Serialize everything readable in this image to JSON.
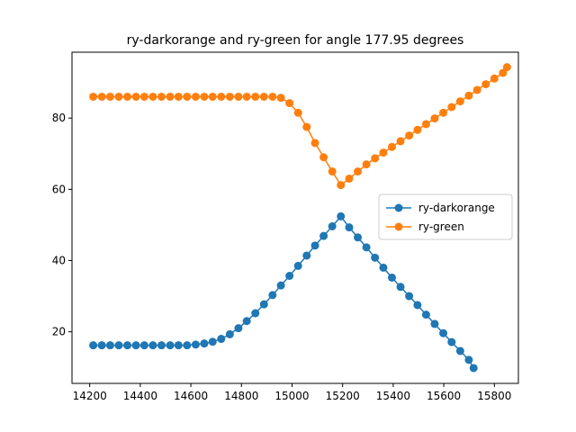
{
  "chart_data": {
    "type": "line",
    "title": "ry-darkorange and ry-green for angle 177.95 degrees",
    "xlabel": "",
    "ylabel": "",
    "xlim": [
      14130,
      15895
    ],
    "ylim": [
      5.5,
      98.5
    ],
    "xticks": [
      14200,
      14400,
      14600,
      14800,
      15000,
      15200,
      15400,
      15600,
      15800
    ],
    "yticks": [
      20,
      40,
      60,
      80
    ],
    "grid": false,
    "legend_position": "center-right",
    "series": [
      {
        "name": "ry-darkorange",
        "color": "#1f77b4",
        "marker": "circle",
        "x": [
          14214,
          14248,
          14281,
          14315,
          14349,
          14383,
          14416,
          14450,
          14484,
          14518,
          14551,
          14585,
          14619,
          14653,
          14686,
          14720,
          14754,
          14788,
          14821,
          14855,
          14889,
          14923,
          14956,
          14990,
          15024,
          15058,
          15091,
          15125,
          15159,
          15193,
          15226,
          15260,
          15294,
          15328,
          15361,
          15395,
          15429,
          15463,
          15496,
          15530,
          15564,
          15598,
          15631,
          15665,
          15699,
          15718
        ],
        "y": [
          16.2,
          16.2,
          16.2,
          16.2,
          16.2,
          16.2,
          16.2,
          16.2,
          16.2,
          16.2,
          16.2,
          16.2,
          16.4,
          16.7,
          17.2,
          18.0,
          19.3,
          21.0,
          23.0,
          25.2,
          27.7,
          30.3,
          33.0,
          35.7,
          38.5,
          41.4,
          44.2,
          46.9,
          49.6,
          52.4,
          49.3,
          46.5,
          43.7,
          40.8,
          38.0,
          35.2,
          32.6,
          30.0,
          27.5,
          24.8,
          22.2,
          19.6,
          17.1,
          14.6,
          12.1,
          9.8
        ]
      },
      {
        "name": "ry-green",
        "color": "#ff7f0e",
        "marker": "circle",
        "x": [
          14214,
          14248,
          14281,
          14315,
          14349,
          14383,
          14416,
          14450,
          14484,
          14518,
          14551,
          14585,
          14619,
          14653,
          14686,
          14720,
          14754,
          14788,
          14821,
          14855,
          14889,
          14923,
          14956,
          14990,
          15024,
          15058,
          15091,
          15125,
          15159,
          15193,
          15226,
          15260,
          15294,
          15328,
          15361,
          15395,
          15429,
          15463,
          15496,
          15530,
          15564,
          15598,
          15631,
          15665,
          15699,
          15732,
          15766,
          15800,
          15834,
          15850
        ],
        "y": [
          86.0,
          86.0,
          86.0,
          86.0,
          86.0,
          86.0,
          86.0,
          86.0,
          86.0,
          86.0,
          86.0,
          86.0,
          86.0,
          86.0,
          86.0,
          86.0,
          86.0,
          86.0,
          86.0,
          86.0,
          86.0,
          86.0,
          85.7,
          84.2,
          81.5,
          77.5,
          73.0,
          69.0,
          65.0,
          61.2,
          63.0,
          65.0,
          67.0,
          68.7,
          70.3,
          71.9,
          73.5,
          75.1,
          76.7,
          78.3,
          79.9,
          81.5,
          83.1,
          84.7,
          86.3,
          87.9,
          89.5,
          91.1,
          92.7,
          94.3
        ]
      }
    ]
  }
}
